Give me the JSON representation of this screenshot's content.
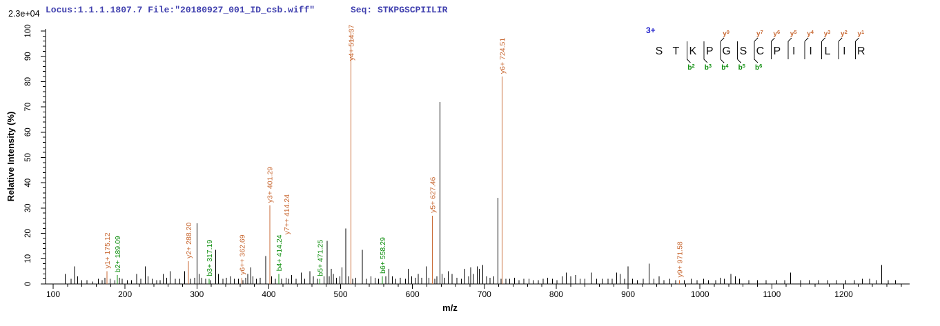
{
  "header": {
    "locus_file": "Locus:1.1.1.1807.7 File:\"20180927_001_ID_csb.wiff\"",
    "seq_label": "Seq: STKPGSCPIILIR",
    "max_intensity": "2.3e+04",
    "text_color": "#3f3fae"
  },
  "peptide": {
    "charge_label": "3+",
    "charge_color": "#2222cc",
    "residues": [
      "S",
      "T",
      "K",
      "P",
      "G",
      "S",
      "C",
      "P",
      "I",
      "I",
      "L",
      "I",
      "R"
    ],
    "cleavages": [
      {
        "after": 2,
        "b": "b2"
      },
      {
        "after": 3,
        "b": "b3"
      },
      {
        "after": 4,
        "b": "b4",
        "y": "y9"
      },
      {
        "after": 5,
        "b": "b5"
      },
      {
        "after": 6,
        "b": "b6",
        "y": "y7"
      },
      {
        "after": 7,
        "y": "y6"
      },
      {
        "after": 8,
        "y": "y5"
      },
      {
        "after": 9,
        "y": "y4"
      },
      {
        "after": 10,
        "y": "y3"
      },
      {
        "after": 11,
        "y": "y2"
      },
      {
        "after": 12,
        "y": "y1"
      }
    ]
  },
  "chart_data": {
    "type": "bar",
    "subtype": "ms2-centroid-mass-spectrum",
    "title": "Locus:1.1.1.1807.7 File:\"20180927_001_ID_csb.wiff\" Seq: STKPGSCPIILIR",
    "xlabel": "m/z",
    "ylabel": "Relative Intensity (%)",
    "xlim": [
      89,
      1292
    ],
    "ylim": [
      0,
      100
    ],
    "x_major_ticks": [
      100,
      200,
      300,
      400,
      500,
      600,
      700,
      800,
      900,
      1000,
      1100,
      1200
    ],
    "x_minor_step": 20,
    "y_major_ticks": [
      0,
      10,
      20,
      30,
      40,
      50,
      60,
      70,
      80,
      90,
      100
    ],
    "y_minor_step": 2,
    "grid": false,
    "legend": "none",
    "colors": {
      "y": "#c96a35",
      "b": "#0f8f0f",
      "noise": "#000000",
      "axis": "#000000"
    },
    "annotated_peaks": [
      {
        "mz": 175.12,
        "intensity_pct": 5,
        "type": "y",
        "labels": [
          {
            "text": "y1+ 175.12",
            "type": "y"
          }
        ]
      },
      {
        "mz": 189.09,
        "intensity_pct": 3.5,
        "type": "b",
        "labels": [
          {
            "text": "b2+ 189.09",
            "type": "b"
          }
        ]
      },
      {
        "mz": 288.2,
        "intensity_pct": 9,
        "type": "y",
        "labels": [
          {
            "text": "y2+ 288.20",
            "type": "y"
          }
        ]
      },
      {
        "mz": 317.19,
        "intensity_pct": 2,
        "type": "b",
        "labels": [
          {
            "text": "b3+ 317.19",
            "type": "b"
          }
        ]
      },
      {
        "mz": 362.69,
        "intensity_pct": 2.5,
        "type": "y",
        "labels": [
          {
            "text": "y6++ 362.69",
            "type": "y"
          }
        ]
      },
      {
        "mz": 401.29,
        "intensity_pct": 31,
        "type": "y",
        "labels": [
          {
            "text": "y3+ 401.29",
            "type": "y"
          }
        ]
      },
      {
        "mz": 414.24,
        "intensity_pct": 4,
        "type": "b",
        "labels": [
          {
            "text": "b4+ 414.24",
            "type": "b"
          },
          {
            "text": "y7++ 414.24",
            "type": "y",
            "dx": 15,
            "dy": -57
          }
        ]
      },
      {
        "mz": 471.25,
        "intensity_pct": 2,
        "type": "b",
        "labels": [
          {
            "text": "b5+ 471.25",
            "type": "b"
          }
        ]
      },
      {
        "mz": 514.37,
        "intensity_pct": 100,
        "type": "y",
        "labels": [
          {
            "text": "y4+ 514.37",
            "type": "y",
            "y_abs": 88
          }
        ]
      },
      {
        "mz": 558.29,
        "intensity_pct": 3,
        "type": "b",
        "labels": [
          {
            "text": "b6+ 558.29",
            "type": "b"
          }
        ]
      },
      {
        "mz": 627.46,
        "intensity_pct": 27,
        "type": "y",
        "labels": [
          {
            "text": "y5+ 627.46",
            "type": "y"
          }
        ]
      },
      {
        "mz": 724.51,
        "intensity_pct": 82,
        "type": "y",
        "labels": [
          {
            "text": "y6+ 724.51",
            "type": "y"
          }
        ]
      },
      {
        "mz": 971.58,
        "intensity_pct": 1.5,
        "type": "y",
        "labels": [
          {
            "text": "y9+ 971.58",
            "type": "y"
          }
        ]
      }
    ],
    "noise_peaks": [
      [
        117,
        4
      ],
      [
        125,
        2
      ],
      [
        130,
        7
      ],
      [
        134,
        3
      ],
      [
        140,
        1.5
      ],
      [
        147,
        1.5
      ],
      [
        155,
        1
      ],
      [
        163,
        2
      ],
      [
        168,
        1.5
      ],
      [
        172,
        2.5
      ],
      [
        179,
        2
      ],
      [
        186,
        1.5
      ],
      [
        192,
        2.5
      ],
      [
        196,
        2
      ],
      [
        203,
        1.5
      ],
      [
        209,
        1.5
      ],
      [
        216,
        4
      ],
      [
        222,
        2
      ],
      [
        228,
        7
      ],
      [
        232,
        3
      ],
      [
        238,
        2
      ],
      [
        244,
        1.5
      ],
      [
        249,
        1.5
      ],
      [
        253,
        4
      ],
      [
        258,
        2.5
      ],
      [
        263,
        5
      ],
      [
        270,
        2
      ],
      [
        276,
        2
      ],
      [
        283,
        5
      ],
      [
        291,
        2
      ],
      [
        297,
        2.5
      ],
      [
        300,
        24
      ],
      [
        303,
        4
      ],
      [
        307,
        2.5
      ],
      [
        312,
        2
      ],
      [
        319,
        1.5
      ],
      [
        326,
        13.5
      ],
      [
        330,
        4
      ],
      [
        336,
        2
      ],
      [
        341,
        2.5
      ],
      [
        347,
        3
      ],
      [
        352,
        2
      ],
      [
        358,
        2
      ],
      [
        364,
        1.5
      ],
      [
        368,
        2.5
      ],
      [
        371,
        4
      ],
      [
        375,
        6.5
      ],
      [
        378,
        3
      ],
      [
        383,
        2
      ],
      [
        388,
        2.5
      ],
      [
        396,
        11
      ],
      [
        404,
        3
      ],
      [
        409,
        2
      ],
      [
        418,
        2
      ],
      [
        424,
        2.5
      ],
      [
        428,
        2
      ],
      [
        432,
        3.5
      ],
      [
        438,
        2
      ],
      [
        445,
        4.5
      ],
      [
        450,
        2
      ],
      [
        457,
        5
      ],
      [
        462,
        3
      ],
      [
        468,
        2
      ],
      [
        477,
        3
      ],
      [
        481,
        17
      ],
      [
        484,
        3
      ],
      [
        487,
        6
      ],
      [
        490,
        4
      ],
      [
        494,
        2.5
      ],
      [
        499,
        3
      ],
      [
        502,
        6.5
      ],
      [
        507,
        22
      ],
      [
        511,
        3
      ],
      [
        517,
        2
      ],
      [
        521,
        2.5
      ],
      [
        530,
        13.5
      ],
      [
        536,
        2
      ],
      [
        542,
        3
      ],
      [
        548,
        2.5
      ],
      [
        553,
        2
      ],
      [
        563,
        3
      ],
      [
        567,
        6
      ],
      [
        572,
        3
      ],
      [
        577,
        2
      ],
      [
        583,
        2.5
      ],
      [
        590,
        2
      ],
      [
        594,
        6
      ],
      [
        599,
        3
      ],
      [
        604,
        2.5
      ],
      [
        608,
        4
      ],
      [
        613,
        2.5
      ],
      [
        619,
        7
      ],
      [
        623,
        2.5
      ],
      [
        631,
        2
      ],
      [
        634,
        3
      ],
      [
        638,
        72
      ],
      [
        641,
        4
      ],
      [
        645,
        2.5
      ],
      [
        650,
        5
      ],
      [
        655,
        4
      ],
      [
        662,
        2.5
      ],
      [
        668,
        2
      ],
      [
        673,
        6
      ],
      [
        678,
        3
      ],
      [
        681,
        6.5
      ],
      [
        685,
        4
      ],
      [
        690,
        7
      ],
      [
        693,
        6
      ],
      [
        698,
        7.5
      ],
      [
        703,
        3
      ],
      [
        708,
        2.5
      ],
      [
        713,
        3
      ],
      [
        719,
        34
      ],
      [
        723,
        2
      ],
      [
        730,
        2
      ],
      [
        735,
        2
      ],
      [
        742,
        2.5
      ],
      [
        748,
        1.5
      ],
      [
        755,
        2
      ],
      [
        762,
        2
      ],
      [
        768,
        1.5
      ],
      [
        775,
        1.5
      ],
      [
        782,
        2
      ],
      [
        788,
        2.5
      ],
      [
        795,
        2
      ],
      [
        801,
        1.5
      ],
      [
        808,
        3
      ],
      [
        814,
        4.5
      ],
      [
        820,
        3
      ],
      [
        827,
        3.5
      ],
      [
        833,
        2
      ],
      [
        840,
        2
      ],
      [
        849,
        4.5
      ],
      [
        856,
        2
      ],
      [
        864,
        2
      ],
      [
        872,
        2
      ],
      [
        878,
        2
      ],
      [
        884,
        4.5
      ],
      [
        889,
        4
      ],
      [
        895,
        2
      ],
      [
        900,
        7
      ],
      [
        906,
        2
      ],
      [
        913,
        1.5
      ],
      [
        921,
        2
      ],
      [
        929,
        8
      ],
      [
        936,
        2
      ],
      [
        943,
        3
      ],
      [
        950,
        1.5
      ],
      [
        958,
        2
      ],
      [
        966,
        1.5
      ],
      [
        978,
        1.5
      ],
      [
        988,
        2
      ],
      [
        996,
        1.5
      ],
      [
        1005,
        2
      ],
      [
        1012,
        1.5
      ],
      [
        1022,
        1.5
      ],
      [
        1028,
        2.5
      ],
      [
        1034,
        2
      ],
      [
        1043,
        4
      ],
      [
        1049,
        3
      ],
      [
        1055,
        2
      ],
      [
        1068,
        1.5
      ],
      [
        1080,
        1.5
      ],
      [
        1092,
        1.5
      ],
      [
        1107,
        1.5
      ],
      [
        1118,
        1.5
      ],
      [
        1126,
        4.5
      ],
      [
        1140,
        1.5
      ],
      [
        1152,
        1.5
      ],
      [
        1165,
        1.5
      ],
      [
        1178,
        1.5
      ],
      [
        1190,
        1.5
      ],
      [
        1203,
        1.5
      ],
      [
        1215,
        1.5
      ],
      [
        1226,
        2
      ],
      [
        1236,
        2
      ],
      [
        1245,
        1.5
      ],
      [
        1253,
        7.5
      ],
      [
        1262,
        1.5
      ],
      [
        1272,
        1.5
      ]
    ]
  }
}
